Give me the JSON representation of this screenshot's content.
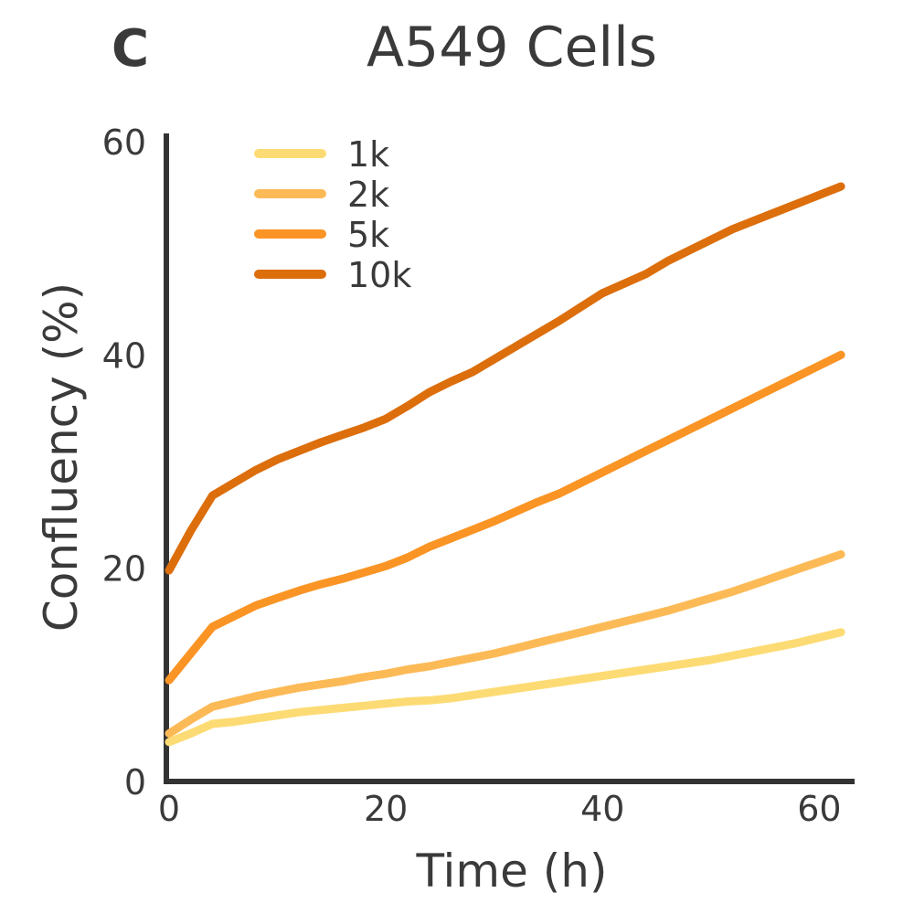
{
  "panel_label": "C",
  "chart_data": {
    "type": "line",
    "title": "A549 Cells",
    "xlabel": "Time (h)",
    "ylabel": "Confluency (%)",
    "xlim": [
      0,
      63
    ],
    "ylim": [
      0,
      60
    ],
    "xticks": [
      0,
      20,
      40,
      60
    ],
    "yticks": [
      0,
      20,
      40,
      60
    ],
    "grid": false,
    "legend_position": "top-left",
    "x": [
      0,
      2,
      4,
      6,
      8,
      10,
      12,
      14,
      16,
      18,
      20,
      22,
      24,
      26,
      28,
      30,
      32,
      34,
      36,
      38,
      40,
      42,
      44,
      46,
      48,
      50,
      52,
      54,
      56,
      58,
      60,
      62
    ],
    "series": [
      {
        "name": "1k",
        "color": "#FDDB74",
        "values": [
          3.7,
          4.5,
          5.4,
          5.6,
          5.9,
          6.2,
          6.5,
          6.7,
          6.9,
          7.1,
          7.3,
          7.5,
          7.6,
          7.8,
          8.1,
          8.4,
          8.7,
          9.0,
          9.3,
          9.6,
          9.9,
          10.2,
          10.5,
          10.8,
          11.1,
          11.4,
          11.8,
          12.2,
          12.6,
          13.0,
          13.5,
          14.0
        ]
      },
      {
        "name": "2k",
        "color": "#FCBA57",
        "values": [
          4.5,
          5.8,
          7.0,
          7.5,
          8.0,
          8.4,
          8.8,
          9.1,
          9.4,
          9.8,
          10.1,
          10.5,
          10.8,
          11.2,
          11.6,
          12.0,
          12.5,
          13.0,
          13.5,
          14.0,
          14.5,
          15.0,
          15.5,
          16.0,
          16.6,
          17.2,
          17.8,
          18.5,
          19.2,
          19.9,
          20.6,
          21.3
        ]
      },
      {
        "name": "5k",
        "color": "#FA9424",
        "values": [
          9.5,
          12.0,
          14.5,
          15.5,
          16.5,
          17.2,
          17.9,
          18.5,
          19.0,
          19.6,
          20.2,
          21.0,
          22.0,
          22.8,
          23.6,
          24.4,
          25.3,
          26.2,
          27.0,
          28.0,
          29.0,
          30.0,
          31.0,
          32.0,
          33.0,
          34.0,
          35.0,
          36.0,
          37.0,
          38.0,
          39.0,
          40.0
        ]
      },
      {
        "name": "10k",
        "color": "#DC6E0C",
        "values": [
          19.8,
          23.5,
          26.8,
          28.0,
          29.2,
          30.2,
          31.0,
          31.8,
          32.5,
          33.2,
          34.0,
          35.2,
          36.5,
          37.5,
          38.4,
          39.6,
          40.8,
          42.0,
          43.2,
          44.5,
          45.8,
          46.7,
          47.6,
          48.8,
          49.8,
          50.8,
          51.8,
          52.6,
          53.4,
          54.2,
          55.0,
          55.8
        ]
      }
    ]
  }
}
